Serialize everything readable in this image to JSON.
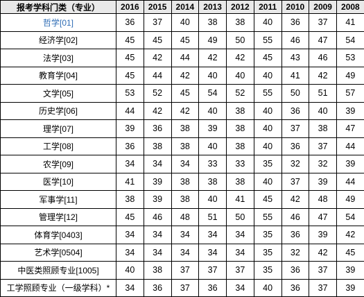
{
  "table": {
    "header": {
      "category": "报考学科门类（专业）",
      "years": [
        "2016",
        "2015",
        "2014",
        "2013",
        "2012",
        "2011",
        "2010",
        "2009",
        "2008"
      ]
    },
    "rows": [
      {
        "name": "哲学[01]",
        "values": [
          "36",
          "37",
          "40",
          "38",
          "38",
          "40",
          "36",
          "37",
          "41"
        ]
      },
      {
        "name": "经济学[02]",
        "values": [
          "45",
          "45",
          "45",
          "49",
          "50",
          "55",
          "46",
          "47",
          "54"
        ]
      },
      {
        "name": "法学[03]",
        "values": [
          "45",
          "42",
          "44",
          "42",
          "42",
          "45",
          "43",
          "46",
          "53"
        ]
      },
      {
        "name": "教育学[04]",
        "values": [
          "45",
          "44",
          "42",
          "40",
          "40",
          "40",
          "41",
          "42",
          "49"
        ]
      },
      {
        "name": "文学[05]",
        "values": [
          "53",
          "52",
          "45",
          "54",
          "52",
          "55",
          "50",
          "51",
          "57"
        ]
      },
      {
        "name": "历史学[06]",
        "values": [
          "44",
          "42",
          "42",
          "40",
          "38",
          "40",
          "36",
          "40",
          "39"
        ]
      },
      {
        "name": "理学[07]",
        "values": [
          "39",
          "36",
          "38",
          "39",
          "38",
          "40",
          "37",
          "38",
          "47"
        ]
      },
      {
        "name": "工学[08]",
        "values": [
          "36",
          "38",
          "38",
          "40",
          "38",
          "40",
          "36",
          "37",
          "44"
        ]
      },
      {
        "name": "农学[09]",
        "values": [
          "34",
          "34",
          "34",
          "33",
          "33",
          "35",
          "32",
          "32",
          "39"
        ]
      },
      {
        "name": "医学[10]",
        "values": [
          "41",
          "39",
          "38",
          "38",
          "38",
          "40",
          "37",
          "39",
          "44"
        ]
      },
      {
        "name": "军事学[11]",
        "values": [
          "38",
          "39",
          "38",
          "40",
          "41",
          "45",
          "42",
          "48",
          "49"
        ]
      },
      {
        "name": "管理学[12]",
        "values": [
          "45",
          "46",
          "48",
          "51",
          "50",
          "55",
          "46",
          "47",
          "54"
        ]
      },
      {
        "name": "体育学[0403]",
        "values": [
          "34",
          "34",
          "34",
          "34",
          "34",
          "35",
          "36",
          "39",
          "42"
        ]
      },
      {
        "name": "艺术学[0504]",
        "values": [
          "34",
          "34",
          "34",
          "34",
          "34",
          "35",
          "32",
          "42",
          "45"
        ]
      },
      {
        "name": "中医类照顾专业[1005]",
        "values": [
          "40",
          "38",
          "37",
          "37",
          "37",
          "35",
          "36",
          "37",
          "39"
        ]
      },
      {
        "name": "工学照顾专业（一级学科）*",
        "values": [
          "34",
          "36",
          "37",
          "36",
          "34",
          "40",
          "36",
          "37",
          "39"
        ]
      }
    ]
  }
}
